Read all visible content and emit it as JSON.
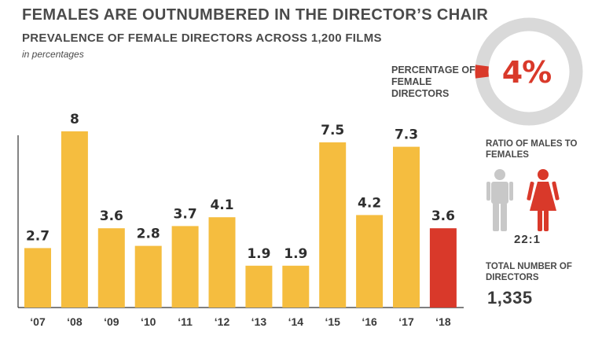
{
  "header": {
    "title": "FEMALES ARE OUTNUMBERED IN THE DIRECTOR’S CHAIR",
    "subtitle": "PREVALENCE OF FEMALE DIRECTORS ACROSS 1,200 FILMS",
    "unit": "in percentages"
  },
  "chart_data": {
    "type": "bar",
    "title": "PREVALENCE OF FEMALE DIRECTORS ACROSS 1,200 FILMS",
    "ylabel": "in percentages",
    "categories": [
      "‘07",
      "‘08",
      "‘09",
      "‘10",
      "‘11",
      "‘12",
      "‘13",
      "‘14",
      "‘15",
      "‘16",
      "‘17",
      "‘18"
    ],
    "values": [
      2.7,
      8,
      3.6,
      2.8,
      3.7,
      4.1,
      1.9,
      1.9,
      7.5,
      4.2,
      7.3,
      3.6
    ],
    "value_labels": [
      "2.7",
      "8",
      "3.6",
      "2.8",
      "3.7",
      "4.1",
      "1.9",
      "1.9",
      "7.5",
      "4.2",
      "7.3",
      "3.6"
    ],
    "ylim": [
      0,
      10
    ],
    "grid": false,
    "bar_color": "#f5bd3f",
    "highlight_color": "#d9392a",
    "highlight_index": 11
  },
  "sidebar": {
    "percentage_label": "PERCENTAGE OF FEMALE DIRECTORS",
    "percentage_value": "4%",
    "percentage": 4,
    "ratio_label": "RATIO OF MALES TO FEMALES",
    "ratio_value": "22:1",
    "total_label": "TOTAL NUMBER OF DIRECTORS",
    "total_value": "1,335",
    "donut_track_color": "#d9d9d9",
    "accent_color": "#d9392a",
    "male_icon_color": "#c8c8c8",
    "female_icon_color": "#d9392a",
    "male_icon": "male-person-icon",
    "female_icon": "female-person-icon"
  }
}
